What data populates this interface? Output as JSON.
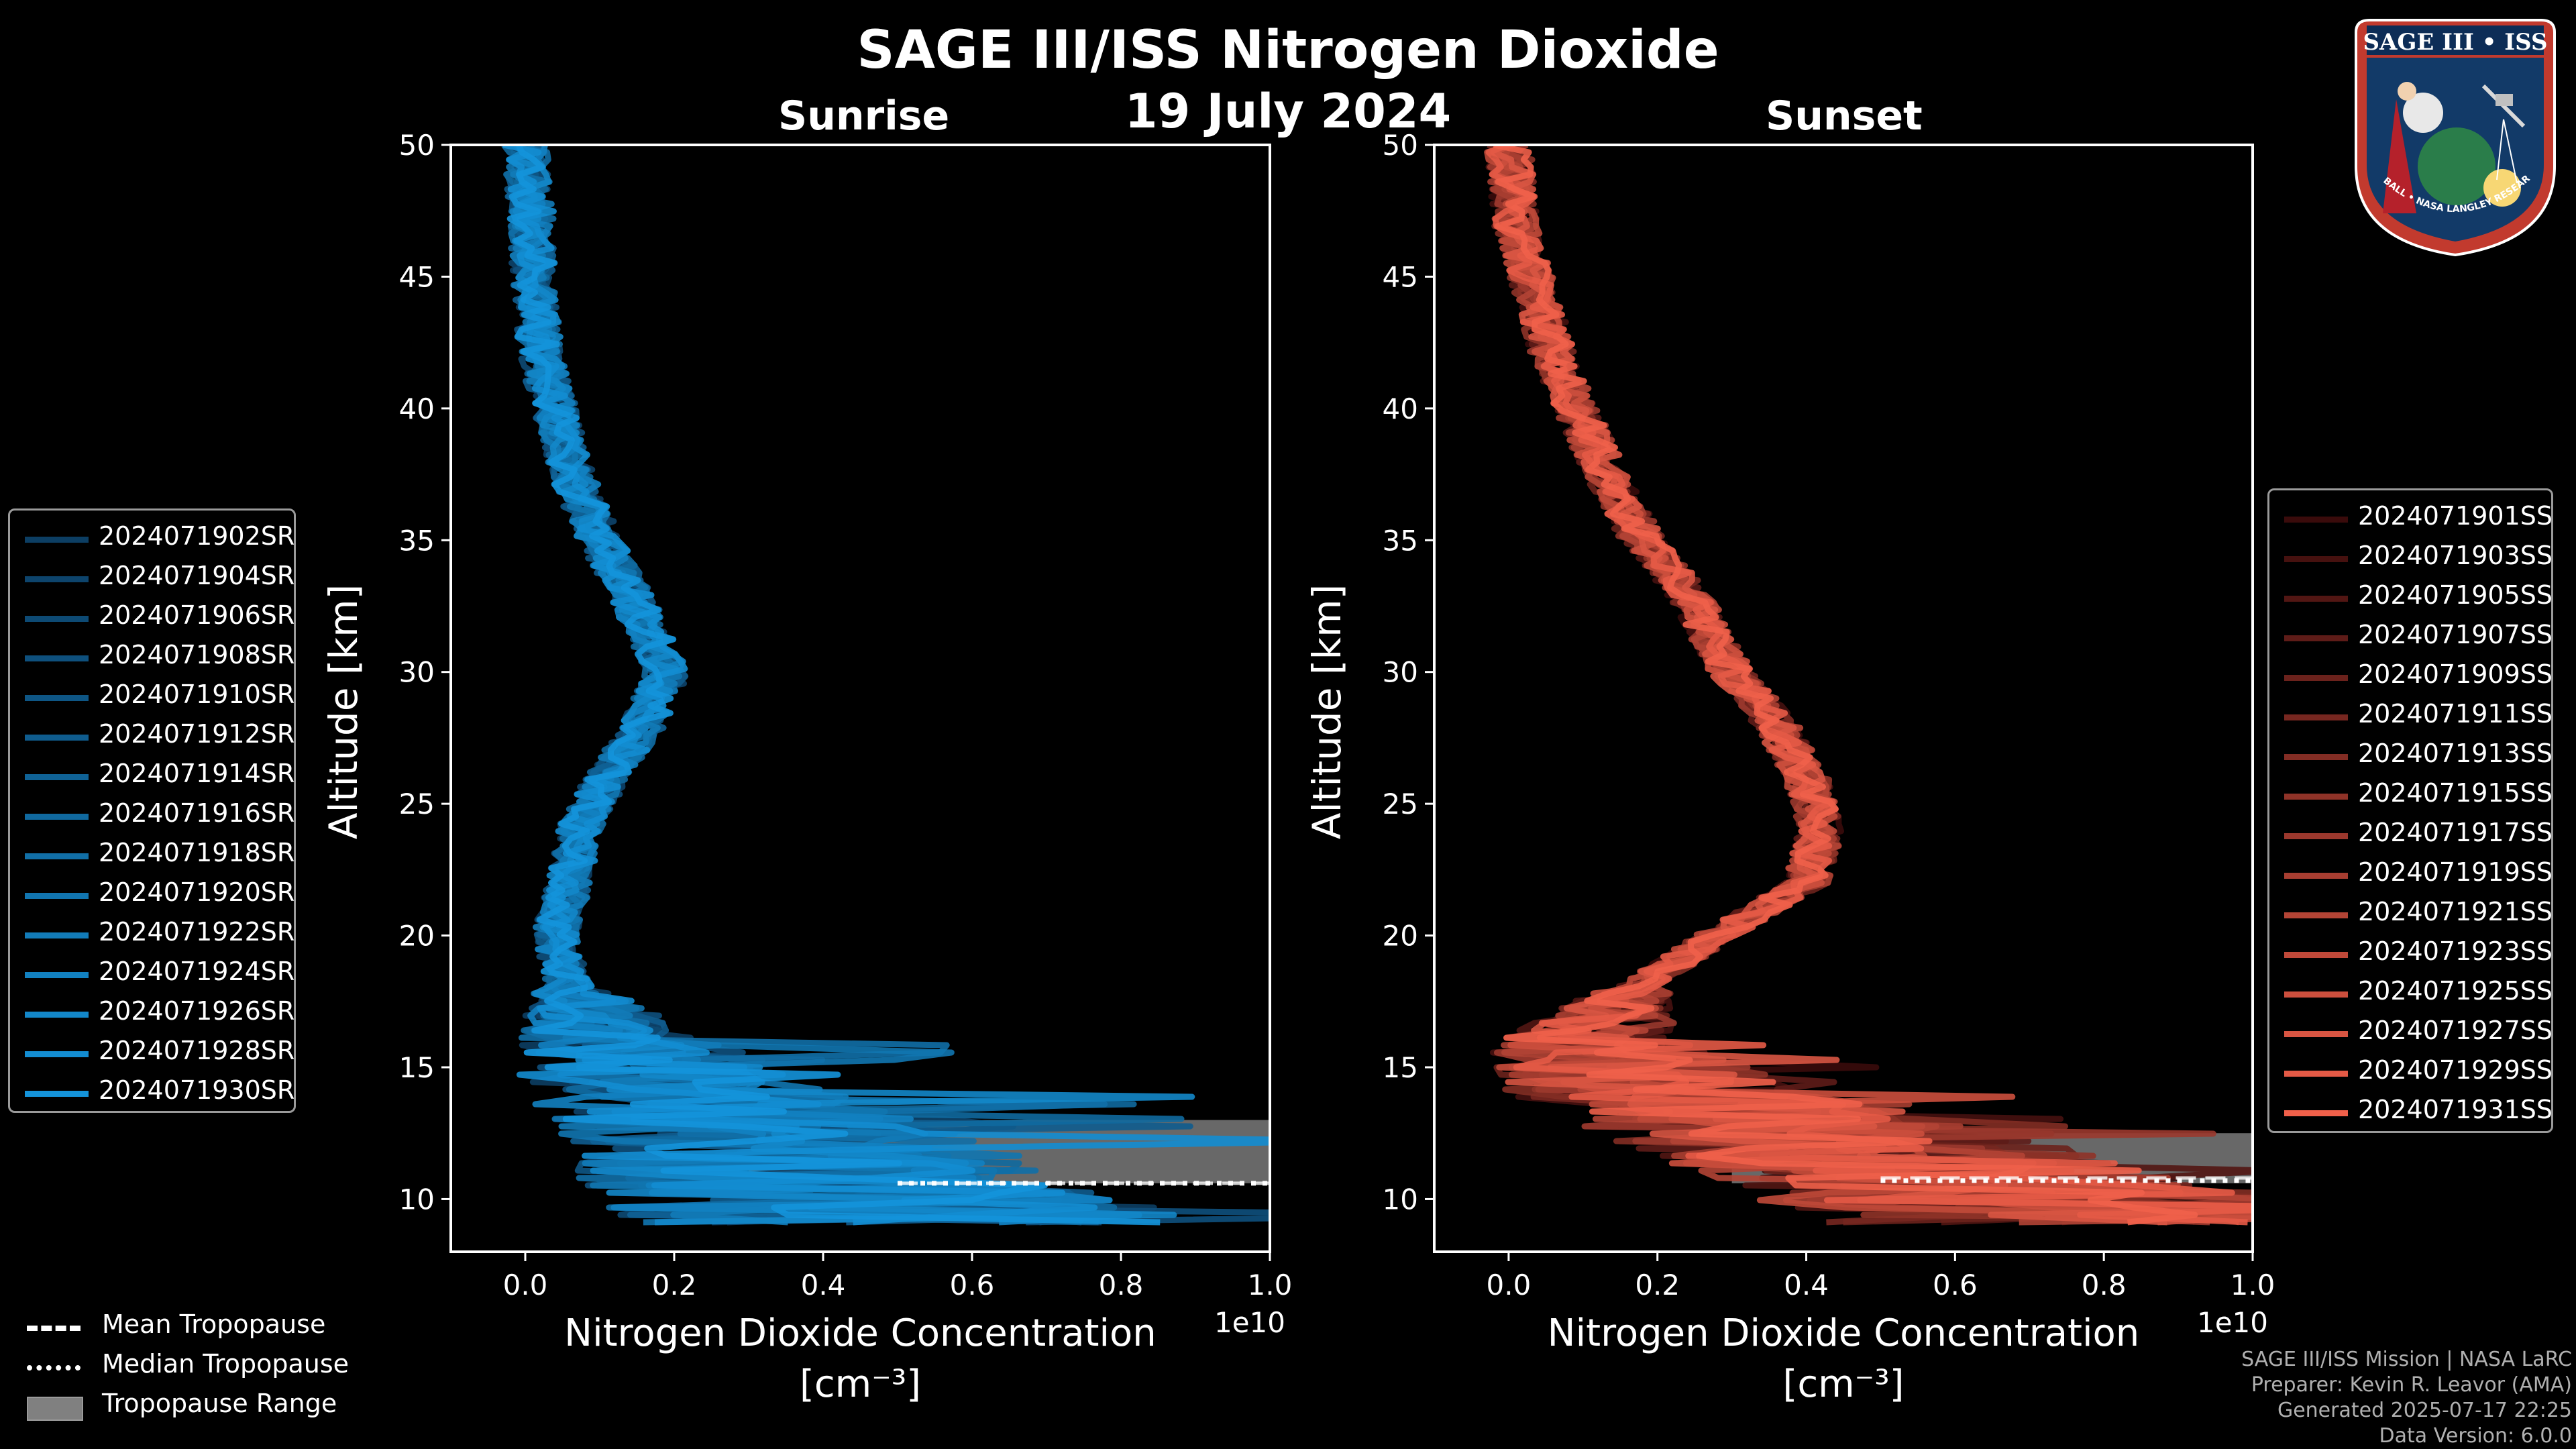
{
  "header": {
    "title": "SAGE III/ISS Nitrogen Dioxide",
    "date": "19 July 2024"
  },
  "chart_data": [
    {
      "type": "line",
      "title": "Sunrise",
      "xlabel_line1": "Nitrogen Dioxide Concentration",
      "xlabel_line2": "[cm⁻³]",
      "ylabel": "Altitude [km]",
      "x_offset_label": "1e10",
      "x_scale": 10000000000,
      "xlim": [
        -0.1,
        1.0
      ],
      "ylim": [
        8,
        50
      ],
      "xticks": [
        "0.0",
        "0.2",
        "0.4",
        "0.6",
        "0.8",
        "1.0"
      ],
      "yticks": [
        "10",
        "15",
        "20",
        "25",
        "30",
        "35",
        "40",
        "45",
        "50"
      ],
      "color": "#1f8fd6",
      "tropopause": {
        "range": [
          10.6,
          13.0
        ],
        "mean": 10.6,
        "median": 10.6
      },
      "mean_profile": {
        "altitude": [
          50,
          47,
          45,
          42,
          40,
          37,
          35,
          33,
          30,
          28,
          26,
          24,
          22,
          20,
          18,
          16,
          14,
          12,
          10,
          9
        ],
        "value": [
          0.0,
          0.01,
          0.01,
          0.02,
          0.04,
          0.07,
          0.1,
          0.14,
          0.19,
          0.16,
          0.11,
          0.07,
          0.06,
          0.04,
          0.06,
          0.12,
          0.2,
          0.35,
          0.45,
          0.5
        ]
      },
      "series": [
        {
          "name": "2024071902SR"
        },
        {
          "name": "2024071904SR"
        },
        {
          "name": "2024071906SR"
        },
        {
          "name": "2024071908SR"
        },
        {
          "name": "2024071910SR"
        },
        {
          "name": "2024071912SR"
        },
        {
          "name": "2024071914SR"
        },
        {
          "name": "2024071916SR"
        },
        {
          "name": "2024071918SR"
        },
        {
          "name": "2024071920SR"
        },
        {
          "name": "2024071922SR"
        },
        {
          "name": "2024071924SR"
        },
        {
          "name": "2024071926SR"
        },
        {
          "name": "2024071928SR"
        },
        {
          "name": "2024071930SR"
        }
      ],
      "legend_position": "center-left outside"
    },
    {
      "type": "line",
      "title": "Sunset",
      "xlabel_line1": "Nitrogen Dioxide Concentration",
      "xlabel_line2": "[cm⁻³]",
      "ylabel": "Altitude [km]",
      "x_offset_label": "1e10",
      "x_scale": 10000000000,
      "xlim": [
        -0.1,
        1.0
      ],
      "ylim": [
        8,
        50
      ],
      "xticks": [
        "0.0",
        "0.2",
        "0.4",
        "0.6",
        "0.8",
        "1.0"
      ],
      "yticks": [
        "10",
        "15",
        "20",
        "25",
        "30",
        "35",
        "40",
        "45",
        "50"
      ],
      "color": "#f0604a",
      "tropopause": {
        "range": [
          10.6,
          12.5
        ],
        "mean": 10.8,
        "median": 10.7
      },
      "mean_profile": {
        "altitude": [
          50,
          47,
          45,
          42,
          40,
          37,
          35,
          33,
          30,
          28,
          26,
          24,
          22,
          20,
          18,
          16,
          14,
          12,
          10,
          9.5
        ],
        "value": [
          0.0,
          0.01,
          0.03,
          0.06,
          0.09,
          0.14,
          0.18,
          0.24,
          0.3,
          0.36,
          0.4,
          0.42,
          0.4,
          0.28,
          0.17,
          0.1,
          0.2,
          0.45,
          0.7,
          0.8
        ]
      },
      "series": [
        {
          "name": "2024071901SS"
        },
        {
          "name": "2024071903SS"
        },
        {
          "name": "2024071905SS"
        },
        {
          "name": "2024071907SS"
        },
        {
          "name": "2024071909SS"
        },
        {
          "name": "2024071911SS"
        },
        {
          "name": "2024071913SS"
        },
        {
          "name": "2024071915SS"
        },
        {
          "name": "2024071917SS"
        },
        {
          "name": "2024071919SS"
        },
        {
          "name": "2024071921SS"
        },
        {
          "name": "2024071923SS"
        },
        {
          "name": "2024071925SS"
        },
        {
          "name": "2024071927SS"
        },
        {
          "name": "2024071929SS"
        },
        {
          "name": "2024071931SS"
        }
      ],
      "legend_position": "center-right"
    }
  ],
  "tropopause_legend": {
    "mean_label": "Mean Tropopause",
    "median_label": "Median Tropopause",
    "range_label": "Tropopause Range"
  },
  "footer": {
    "line1": "SAGE III/ISS Mission | NASA LaRC",
    "line2": "Preparer: Kevin R. Leavor (AMA)",
    "line3": "Generated 2025-07-17 22:25",
    "line4": "Data Version: 6.0.0"
  },
  "logo": {
    "text_top": "SAGE III • ISS",
    "text_ring": "BALL • NASA LANGLEY RESEARCH CENTER • TAS-I • ESA"
  }
}
